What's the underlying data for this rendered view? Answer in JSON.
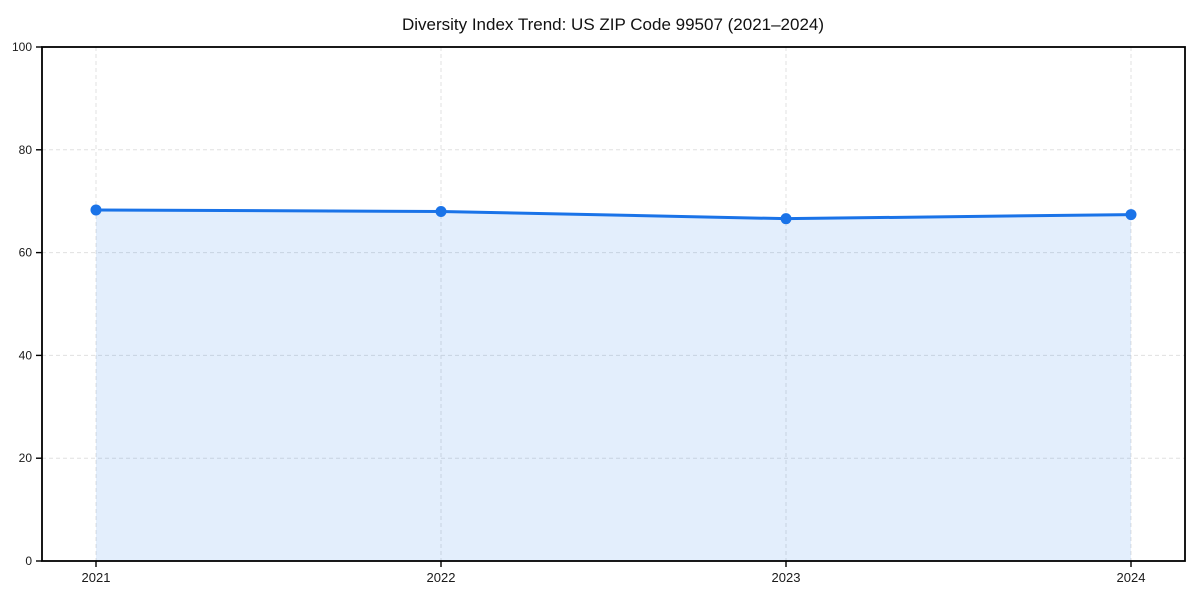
{
  "chart_data": {
    "type": "area",
    "title": "Diversity Index Trend: US ZIP Code 99507 (2021–2024)",
    "categories": [
      "2021",
      "2022",
      "2023",
      "2024"
    ],
    "values": [
      68.3,
      68.0,
      66.6,
      67.4
    ],
    "xlabel": "",
    "ylabel": "",
    "ylim": [
      0,
      100
    ],
    "yticks": [
      0,
      20,
      40,
      60,
      80,
      100
    ],
    "grid": true,
    "grid_style": "dashed",
    "legend": false,
    "colors": {
      "line": "#1a73e8",
      "marker": "#1a73e8",
      "fill": "#1a73e8",
      "fill_opacity": 0.12,
      "grid": "#e0e0e0",
      "axis": "#000000",
      "tick_text": "#1a1a1a"
    }
  }
}
